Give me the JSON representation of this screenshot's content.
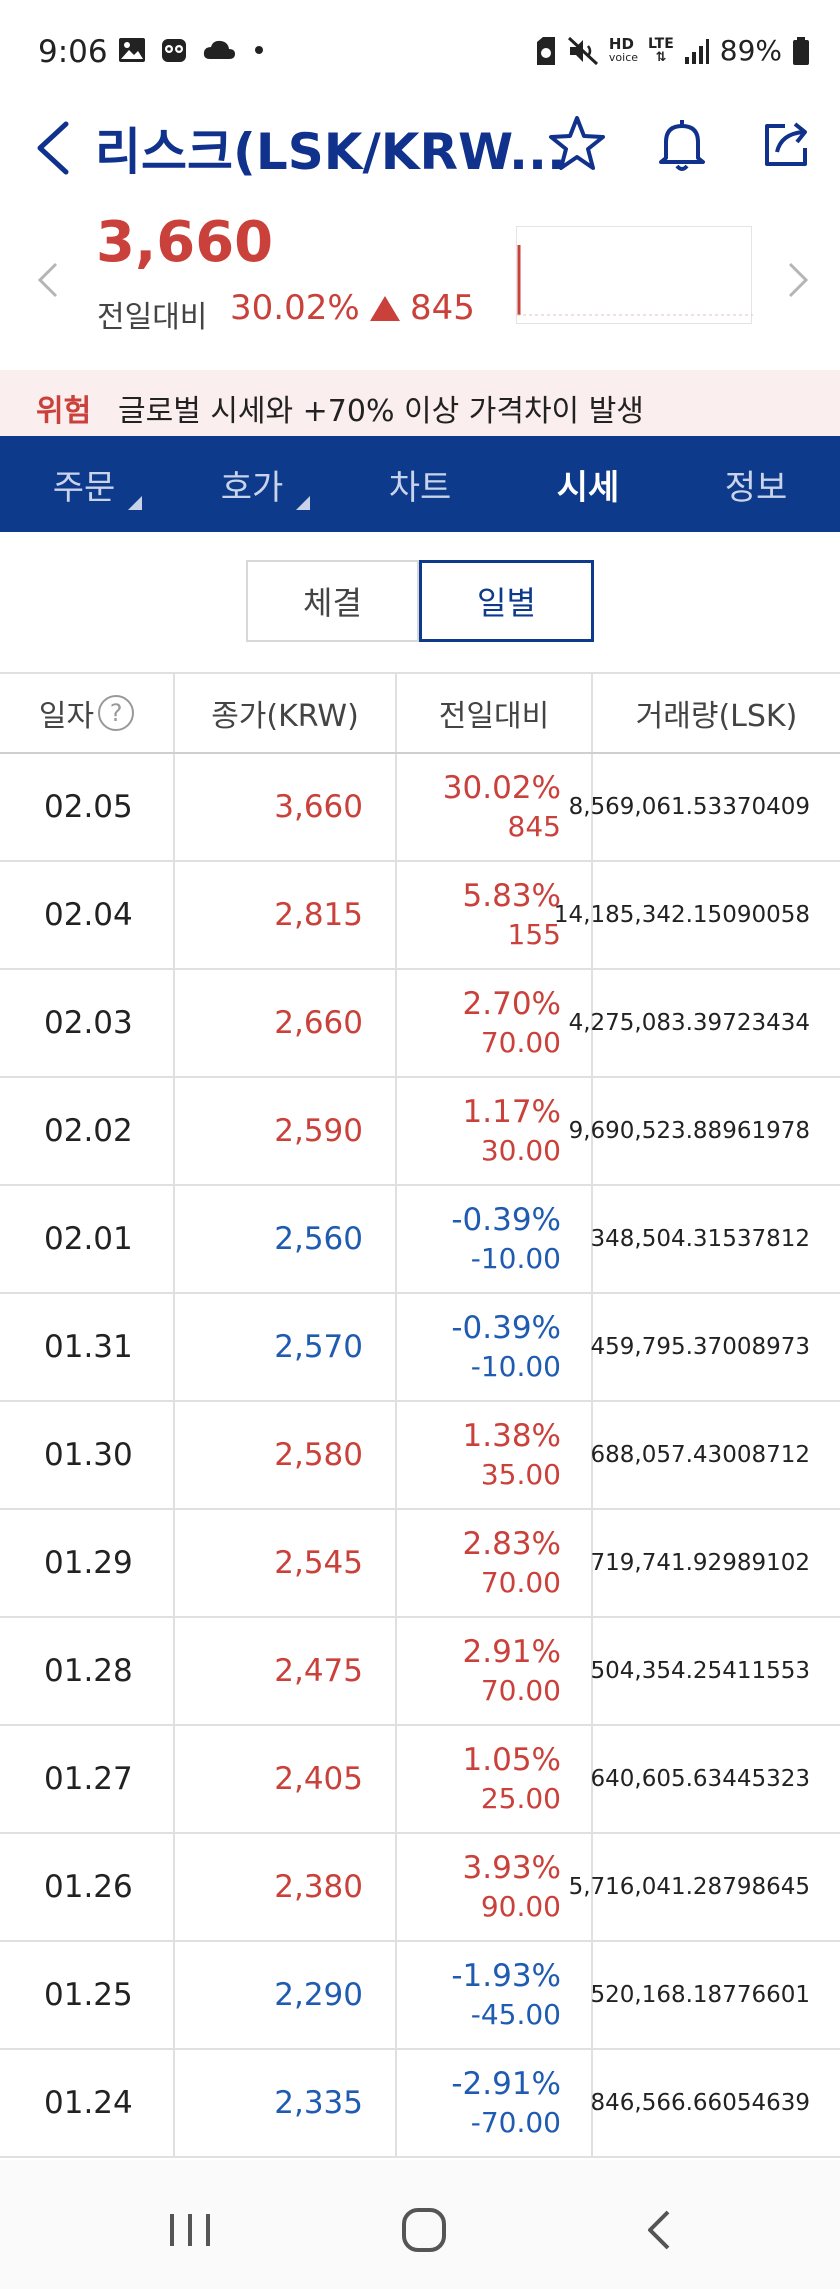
{
  "status_bar": {
    "time": "9:06",
    "battery": "89%",
    "icons": [
      "gallery-icon",
      "owl-icon",
      "cloud-icon",
      "dot-icon",
      "sim-icon",
      "mute-icon",
      "hd-voice-icon",
      "lte-icon",
      "signal-icon",
      "battery-icon"
    ],
    "hd_label": "HD",
    "voice_label": "voice",
    "lte_label": "LTE"
  },
  "header": {
    "title": "리스크(LSK/KRW...",
    "icons": [
      "back-icon",
      "star-icon",
      "bell-icon",
      "share-icon"
    ]
  },
  "price_info": {
    "price": "3,660",
    "change_label": "전일대비",
    "change_pct": "30.02%",
    "change_value": "845"
  },
  "warning": {
    "tag": "위험",
    "text": "글로벌 시세와 +70% 이상 가격차이 발생"
  },
  "tabs": [
    {
      "label": "주문",
      "has_menu": true
    },
    {
      "label": "호가",
      "has_menu": true
    },
    {
      "label": "차트",
      "has_menu": false
    },
    {
      "label": "시세",
      "has_menu": false
    },
    {
      "label": "정보",
      "has_menu": false
    }
  ],
  "active_tab": "시세",
  "segments": [
    {
      "label": "체결"
    },
    {
      "label": "일별"
    }
  ],
  "active_segment": "일별",
  "table": {
    "headers": [
      "일자",
      "종가(KRW)",
      "전일대비",
      "거래량(LSK)"
    ],
    "help_icon": "?",
    "rows": [
      {
        "date": "02.05",
        "close": "3,660",
        "pct": "30.02%",
        "amt": "845",
        "volume": "8,569,061.53370409",
        "dir": "up"
      },
      {
        "date": "02.04",
        "close": "2,815",
        "pct": "5.83%",
        "amt": "155",
        "volume": "14,185,342.15090058",
        "dir": "up"
      },
      {
        "date": "02.03",
        "close": "2,660",
        "pct": "2.70%",
        "amt": "70.00",
        "volume": "4,275,083.39723434",
        "dir": "up"
      },
      {
        "date": "02.02",
        "close": "2,590",
        "pct": "1.17%",
        "amt": "30.00",
        "volume": "9,690,523.88961978",
        "dir": "up"
      },
      {
        "date": "02.01",
        "close": "2,560",
        "pct": "-0.39%",
        "amt": "-10.00",
        "volume": "348,504.31537812",
        "dir": "down"
      },
      {
        "date": "01.31",
        "close": "2,570",
        "pct": "-0.39%",
        "amt": "-10.00",
        "volume": "459,795.37008973",
        "dir": "down"
      },
      {
        "date": "01.30",
        "close": "2,580",
        "pct": "1.38%",
        "amt": "35.00",
        "volume": "688,057.43008712",
        "dir": "up"
      },
      {
        "date": "01.29",
        "close": "2,545",
        "pct": "2.83%",
        "amt": "70.00",
        "volume": "719,741.92989102",
        "dir": "up"
      },
      {
        "date": "01.28",
        "close": "2,475",
        "pct": "2.91%",
        "amt": "70.00",
        "volume": "504,354.25411553",
        "dir": "up"
      },
      {
        "date": "01.27",
        "close": "2,405",
        "pct": "1.05%",
        "amt": "25.00",
        "volume": "640,605.63445323",
        "dir": "up"
      },
      {
        "date": "01.26",
        "close": "2,380",
        "pct": "3.93%",
        "amt": "90.00",
        "volume": "5,716,041.28798645",
        "dir": "up"
      },
      {
        "date": "01.25",
        "close": "2,290",
        "pct": "-1.93%",
        "amt": "-45.00",
        "volume": "520,168.18776601",
        "dir": "down"
      },
      {
        "date": "01.24",
        "close": "2,335",
        "pct": "-2.91%",
        "amt": "-70.00",
        "volume": "846,566.66054639",
        "dir": "down"
      }
    ]
  },
  "colors": {
    "up": "#c9413a",
    "down": "#1f5bb0",
    "brand": "#0e3a8c",
    "warning_bg": "#fbeeee"
  },
  "bottom_nav": {
    "icons": [
      "recent-apps-icon",
      "home-icon",
      "back-nav-icon"
    ]
  }
}
